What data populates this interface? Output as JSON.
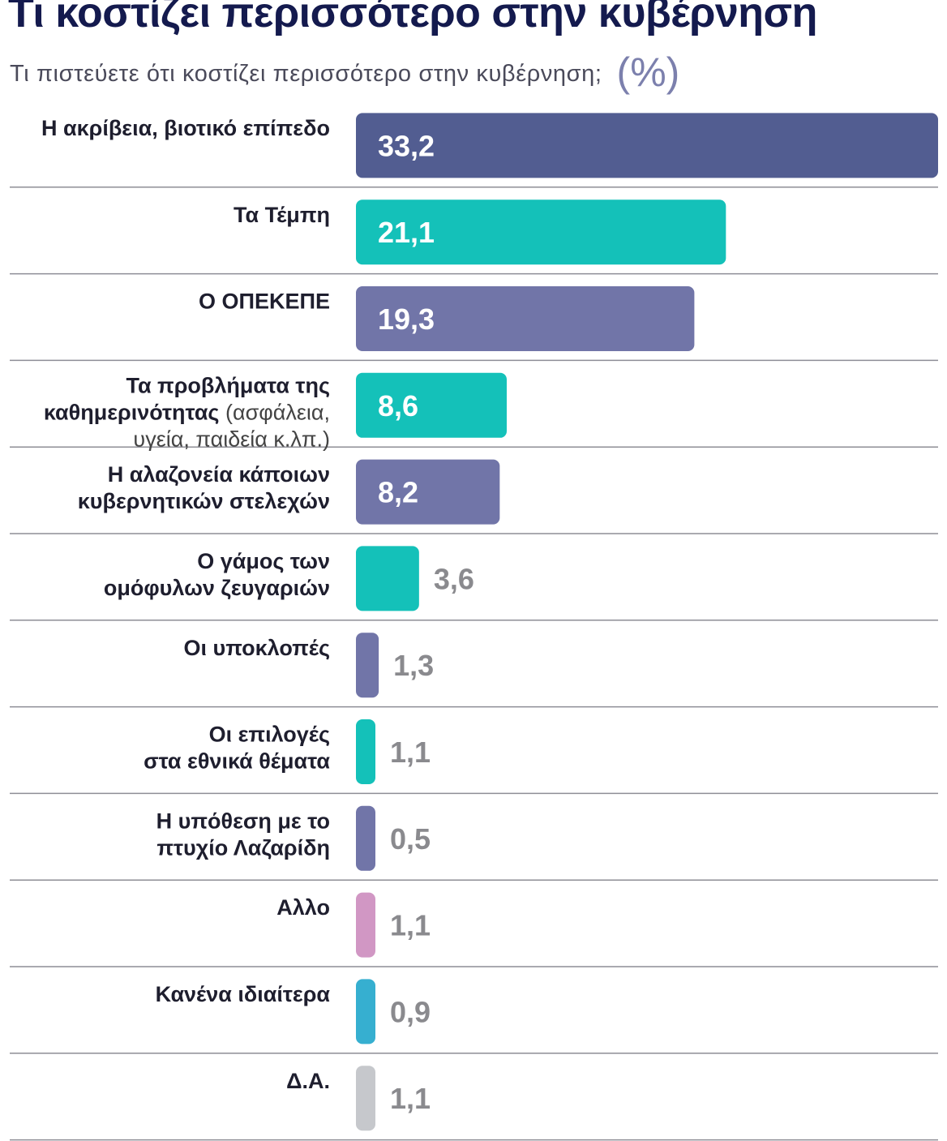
{
  "header": {
    "title": "Τι κοστίζει περισσότερο στην κυβέρνηση",
    "subtitle": "Τι πιστεύετε ότι κοστίζει περισσότερο στην κυβέρνηση;",
    "unit": "(%)"
  },
  "colors": {
    "navy": "#525d91",
    "purple": "#7175a8",
    "teal": "#14c1b9",
    "pink": "#d197c4",
    "blue": "#36afd0",
    "gray": "#c6c8cc",
    "divider": "#8e8e96"
  },
  "chart_data": {
    "type": "bar",
    "orientation": "horizontal",
    "title": "Τι κοστίζει περισσότερο στην κυβέρνηση",
    "subtitle": "Τι πιστεύετε ότι κοστίζει περισσότερο στην κυβέρνηση;",
    "unit": "(%)",
    "xlim": [
      0,
      33.2
    ],
    "grid": false,
    "legend": "none",
    "categories": [
      {
        "lines": [
          [
            {
              "t": "Η ακρίβεια, βιοτικό επίπεδο"
            }
          ]
        ],
        "value": "33,2",
        "v": 33.2,
        "color": "navy"
      },
      {
        "lines": [
          [
            {
              "t": "Τα Τέμπη"
            }
          ]
        ],
        "value": "21,1",
        "v": 21.1,
        "color": "teal"
      },
      {
        "lines": [
          [
            {
              "t": "Ο ΟΠΕΚΕΠΕ"
            }
          ]
        ],
        "value": "19,3",
        "v": 19.3,
        "color": "purple"
      },
      {
        "lines": [
          [
            {
              "t": "Τα προβλήματα της"
            }
          ],
          [
            {
              "t": "καθημερινότητας "
            },
            {
              "t": "(ασφάλεια,",
              "note": true
            }
          ],
          [
            {
              "t": "υγεία, παιδεία κ.λπ.)",
              "note": true
            }
          ]
        ],
        "value": "8,6",
        "v": 8.6,
        "color": "teal"
      },
      {
        "lines": [
          [
            {
              "t": "Η αλαζονεία κάποιων"
            }
          ],
          [
            {
              "t": "κυβερνητικών στελεχών"
            }
          ]
        ],
        "value": "8,2",
        "v": 8.2,
        "color": "purple"
      },
      {
        "lines": [
          [
            {
              "t": "Ο γάμος των"
            }
          ],
          [
            {
              "t": "ομόφυλων ζευγαριών"
            }
          ]
        ],
        "value": "3,6",
        "v": 3.6,
        "color": "teal"
      },
      {
        "lines": [
          [
            {
              "t": "Οι υποκλοπές"
            }
          ]
        ],
        "value": "1,3",
        "v": 1.3,
        "color": "purple"
      },
      {
        "lines": [
          [
            {
              "t": "Οι επιλογές"
            }
          ],
          [
            {
              "t": "στα εθνικά θέματα"
            }
          ]
        ],
        "value": "1,1",
        "v": 1.1,
        "color": "teal"
      },
      {
        "lines": [
          [
            {
              "t": "Η υπόθεση με το"
            }
          ],
          [
            {
              "t": "πτυχίο Λαζαρίδη"
            }
          ]
        ],
        "value": "0,5",
        "v": 0.5,
        "color": "purple"
      },
      {
        "lines": [
          [
            {
              "t": "Αλλο"
            }
          ]
        ],
        "value": "1,1",
        "v": 1.1,
        "color": "pink"
      },
      {
        "lines": [
          [
            {
              "t": "Κανένα ιδιαίτερα"
            }
          ]
        ],
        "value": "0,9",
        "v": 0.9,
        "color": "blue"
      },
      {
        "lines": [
          [
            {
              "t": "Δ.Α."
            }
          ]
        ],
        "value": "1,1",
        "v": 1.1,
        "color": "gray"
      }
    ]
  }
}
